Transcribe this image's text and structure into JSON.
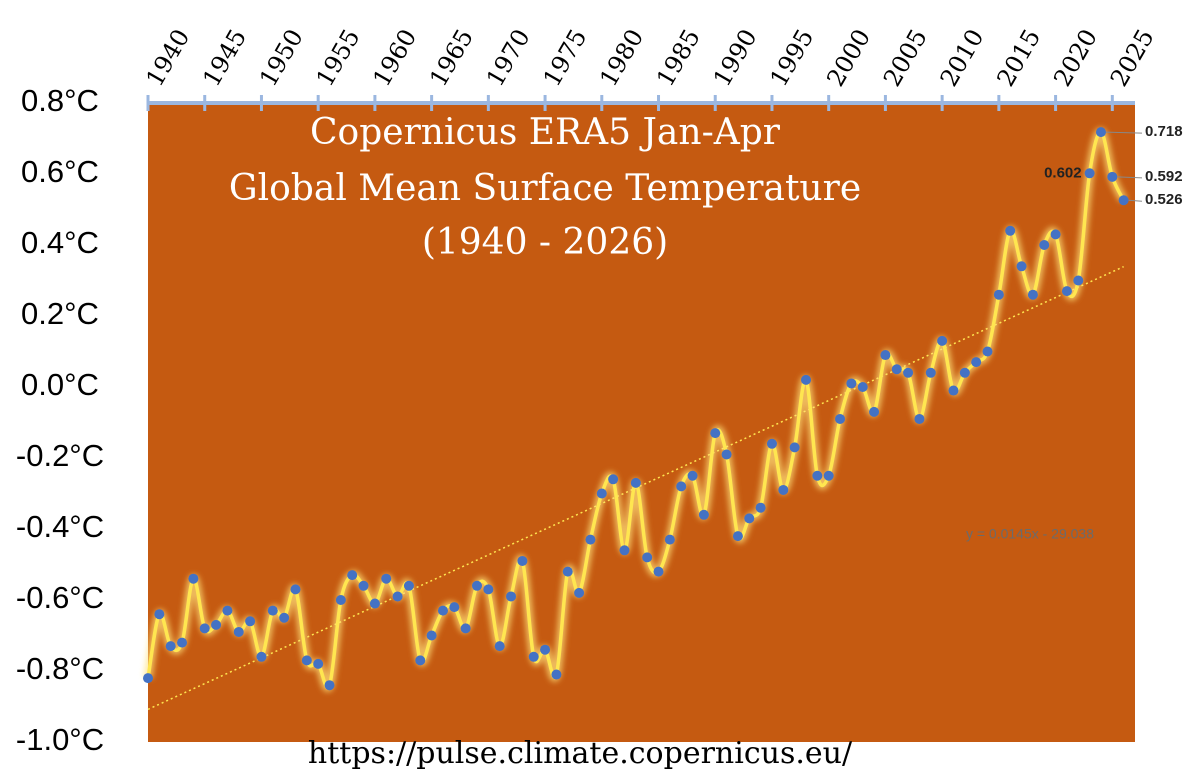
{
  "chart_data": {
    "type": "line",
    "title": [
      "Copernicus ERA5 Jan-Apr",
      "Global Mean Surface Temperature",
      "(1940 - 2026)"
    ],
    "source": "https://pulse.climate.copernicus.eu/",
    "x": [
      1940,
      1941,
      1942,
      1943,
      1944,
      1945,
      1946,
      1947,
      1948,
      1949,
      1950,
      1951,
      1952,
      1953,
      1954,
      1955,
      1956,
      1957,
      1958,
      1959,
      1960,
      1961,
      1962,
      1963,
      1964,
      1965,
      1966,
      1967,
      1968,
      1969,
      1970,
      1971,
      1972,
      1973,
      1974,
      1975,
      1976,
      1977,
      1978,
      1979,
      1980,
      1981,
      1982,
      1983,
      1984,
      1985,
      1986,
      1987,
      1988,
      1989,
      1990,
      1991,
      1992,
      1993,
      1994,
      1995,
      1996,
      1997,
      1998,
      1999,
      2000,
      2001,
      2002,
      2003,
      2004,
      2005,
      2006,
      2007,
      2008,
      2009,
      2010,
      2011,
      2012,
      2013,
      2014,
      2015,
      2016,
      2017,
      2018,
      2019,
      2020,
      2021,
      2022,
      2023,
      2024,
      2025,
      2026
    ],
    "series": [
      {
        "name": "Jan-Apr",
        "color": "#4472c4",
        "line_color": "#ffe650",
        "values": [
          -0.82,
          -0.64,
          -0.73,
          -0.72,
          -0.54,
          -0.68,
          -0.67,
          -0.63,
          -0.69,
          -0.66,
          -0.76,
          -0.63,
          -0.65,
          -0.57,
          -0.77,
          -0.78,
          -0.84,
          -0.6,
          -0.53,
          -0.56,
          -0.61,
          -0.54,
          -0.59,
          -0.56,
          -0.77,
          -0.7,
          -0.63,
          -0.62,
          -0.68,
          -0.56,
          -0.57,
          -0.73,
          -0.59,
          -0.49,
          -0.76,
          -0.74,
          -0.81,
          -0.52,
          -0.58,
          -0.43,
          -0.3,
          -0.26,
          -0.46,
          -0.27,
          -0.48,
          -0.52,
          -0.43,
          -0.28,
          -0.25,
          -0.36,
          -0.13,
          -0.19,
          -0.42,
          -0.37,
          -0.34,
          -0.16,
          -0.29,
          -0.17,
          0.02,
          -0.25,
          -0.25,
          -0.09,
          0.01,
          0.0,
          -0.07,
          0.09,
          0.05,
          0.04,
          -0.09,
          0.04,
          0.13,
          -0.01,
          0.04,
          0.07,
          0.1,
          0.26,
          0.44,
          0.34,
          0.26,
          0.4,
          0.43,
          0.27,
          0.3,
          0.602,
          0.718,
          0.592,
          0.526
        ],
        "value_labels": [
          null,
          null,
          null,
          null,
          null,
          null,
          null,
          null,
          null,
          null,
          null,
          null,
          null,
          null,
          null,
          null,
          null,
          null,
          null,
          null,
          null,
          null,
          null,
          null,
          null,
          null,
          null,
          null,
          null,
          null,
          null,
          null,
          null,
          null,
          null,
          null,
          null,
          null,
          null,
          null,
          null,
          null,
          null,
          null,
          null,
          null,
          null,
          null,
          null,
          null,
          null,
          null,
          null,
          null,
          null,
          null,
          null,
          null,
          null,
          null,
          null,
          null,
          null,
          null,
          null,
          null,
          null,
          null,
          null,
          null,
          null,
          null,
          null,
          null,
          null,
          null,
          null,
          null,
          null,
          null,
          null,
          null,
          null,
          "0.602",
          "0.718",
          "0.592",
          "0.526"
        ]
      }
    ],
    "trend": {
      "slope": 0.0145,
      "intercept": -29.038,
      "label": "y = 0.0145x - 29.038",
      "color": "#ffe650"
    },
    "xlim": [
      1940,
      2027
    ],
    "xticks": [
      1940,
      1945,
      1950,
      1955,
      1960,
      1965,
      1970,
      1975,
      1980,
      1985,
      1990,
      1995,
      2000,
      2005,
      2010,
      2015,
      2020,
      2025
    ],
    "ylim": [
      -1.0,
      0.8
    ],
    "yticks": [
      {
        "value": -1.0,
        "label": "-1.0°C"
      },
      {
        "value": -0.8,
        "label": "-0.8°C"
      },
      {
        "value": -0.6,
        "label": "-0.6°C"
      },
      {
        "value": -0.4,
        "label": "-0.4°C"
      },
      {
        "value": -0.2,
        "label": "-0.2°C"
      },
      {
        "value": 0.0,
        "label": "0.0°C"
      },
      {
        "value": 0.2,
        "label": "0.2°C"
      },
      {
        "value": 0.4,
        "label": "0.4°C"
      },
      {
        "value": 0.6,
        "label": "0.6°C"
      },
      {
        "value": 0.8,
        "label": "0.8°C"
      }
    ],
    "background": "#c55a11",
    "grid": false
  }
}
